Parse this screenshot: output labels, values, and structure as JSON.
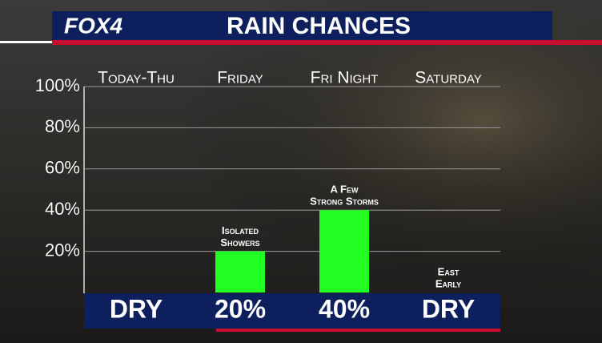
{
  "brand": "FOX4",
  "chart_data": {
    "type": "bar",
    "title": "RAIN CHANCES",
    "categories": [
      "Today-Thu",
      "Friday",
      "Fri Night",
      "Saturday"
    ],
    "values": [
      0,
      20,
      40,
      0
    ],
    "value_labels": [
      "DRY",
      "20%",
      "40%",
      "DRY"
    ],
    "annotations": [
      null,
      [
        "Isolated",
        "Showers"
      ],
      [
        "A Few",
        "Strong Storms"
      ],
      [
        "East",
        "Early"
      ]
    ],
    "color": "#22ff22",
    "ylim": [
      0,
      100
    ],
    "yticks": [
      {
        "value": 20,
        "label": "20%"
      },
      {
        "value": 40,
        "label": "40%"
      },
      {
        "value": 60,
        "label": "60%"
      },
      {
        "value": 80,
        "label": "80%"
      },
      {
        "value": 100,
        "label": "100%"
      }
    ],
    "grid": true
  }
}
